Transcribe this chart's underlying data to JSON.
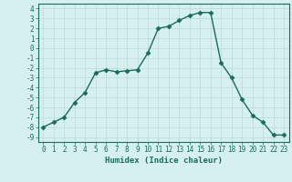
{
  "x": [
    0,
    1,
    2,
    3,
    4,
    5,
    6,
    7,
    8,
    9,
    10,
    11,
    12,
    13,
    14,
    15,
    16,
    17,
    18,
    19,
    20,
    21,
    22,
    23
  ],
  "y": [
    -8,
    -7.5,
    -7,
    -5.5,
    -4.5,
    -2.5,
    -2.2,
    -2.4,
    -2.3,
    -2.2,
    -0.5,
    2.0,
    2.2,
    2.8,
    3.3,
    3.6,
    3.6,
    -1.5,
    -3.0,
    -5.2,
    -6.8,
    -7.5,
    -8.8,
    -8.8
  ],
  "xlim": [
    -0.5,
    23.5
  ],
  "ylim": [
    -9.5,
    4.5
  ],
  "xticks": [
    0,
    1,
    2,
    3,
    4,
    5,
    6,
    7,
    8,
    9,
    10,
    11,
    12,
    13,
    14,
    15,
    16,
    17,
    18,
    19,
    20,
    21,
    22,
    23
  ],
  "yticks": [
    4,
    3,
    2,
    1,
    0,
    -1,
    -2,
    -3,
    -4,
    -5,
    -6,
    -7,
    -8,
    -9
  ],
  "xlabel": "Humidex (Indice chaleur)",
  "line_color": "#1a6b5e",
  "marker": "D",
  "marker_size": 2.5,
  "bg_color": "#d6f0ef",
  "grid_color": "#c0dedd",
  "tick_color": "#1a6b5e",
  "label_color": "#1a6b5e",
  "font_family": "monospace",
  "tick_fontsize": 5.5,
  "xlabel_fontsize": 6.5
}
